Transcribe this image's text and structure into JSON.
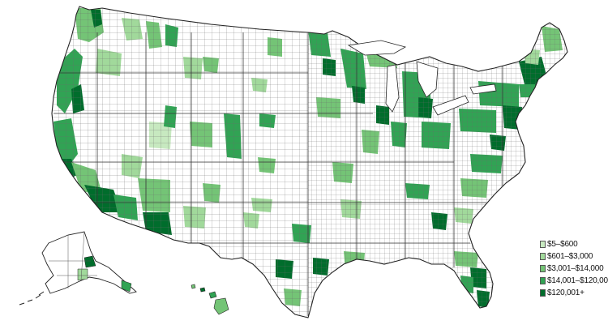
{
  "legend": {
    "items": [
      {
        "label": "$5–$600",
        "color": "#c7e9c0"
      },
      {
        "label": "$601–$3,000",
        "color": "#a1d99b"
      },
      {
        "label": "$3,001–$14,000",
        "color": "#74c476"
      },
      {
        "label": "$14,001–$120,000",
        "color": "#31a354"
      },
      {
        "label": "$120,001+",
        "color": "#006d2c"
      }
    ]
  },
  "map": {
    "regions": [
      "contiguous-us",
      "alaska",
      "hawaii"
    ],
    "no_data_color": "#ffffff",
    "border_color": "#333333"
  }
}
